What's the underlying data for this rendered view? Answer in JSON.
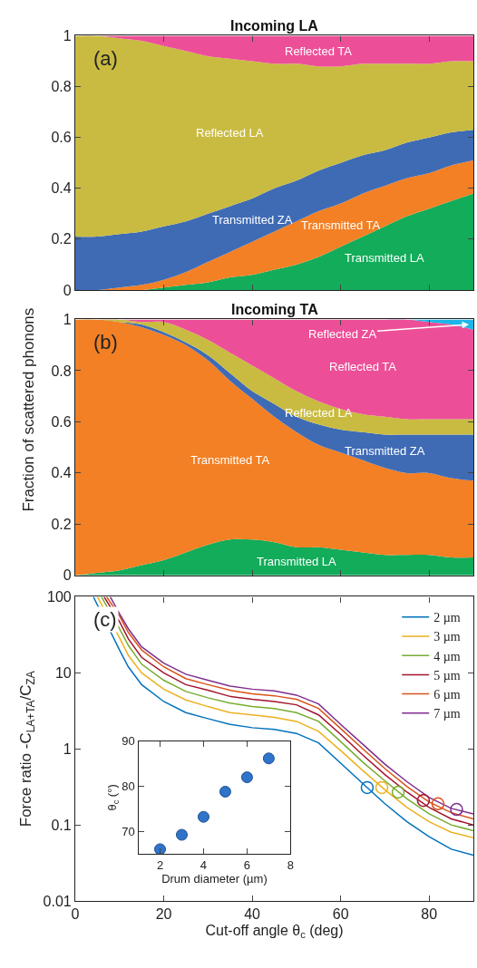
{
  "chart_data": [
    {
      "type": "area",
      "title": "Incoming LA",
      "ylabel": "Fraction of scattered phonons",
      "annotations": [
        "(a)"
      ],
      "stacked": true,
      "x": [
        0,
        5,
        10,
        15,
        20,
        25,
        30,
        35,
        40,
        45,
        50,
        55,
        60,
        65,
        70,
        75,
        80,
        85,
        90
      ],
      "xlim": [
        0,
        90
      ],
      "xticks": [
        0,
        20,
        40,
        60,
        80
      ],
      "ylim": [
        0,
        1
      ],
      "yticks": [
        0,
        0.2,
        0.4,
        0.6,
        0.8,
        1
      ],
      "tick_labels": "y",
      "series": [
        {
          "name": "Transmitted LA",
          "color": "#12ac5a",
          "values": [
            0,
            0,
            0,
            0,
            0.01,
            0.02,
            0.03,
            0.05,
            0.06,
            0.08,
            0.1,
            0.13,
            0.17,
            0.21,
            0.25,
            0.29,
            0.32,
            0.35,
            0.38
          ]
        },
        {
          "name": "Transmitted TA",
          "color": "#f38025",
          "values": [
            0,
            0,
            0.01,
            0.02,
            0.03,
            0.05,
            0.08,
            0.1,
            0.13,
            0.15,
            0.17,
            0.18,
            0.17,
            0.17,
            0.16,
            0.15,
            0.14,
            0.14,
            0.13
          ]
        },
        {
          "name": "Transmitted ZA",
          "color": "#3f6bb5",
          "values": [
            0.21,
            0.21,
            0.21,
            0.21,
            0.21,
            0.2,
            0.19,
            0.18,
            0.17,
            0.17,
            0.16,
            0.16,
            0.16,
            0.15,
            0.14,
            0.14,
            0.14,
            0.13,
            0.12
          ]
        },
        {
          "name": "Reflected LA",
          "color": "#c9bb41",
          "values": [
            0.79,
            0.79,
            0.77,
            0.75,
            0.71,
            0.67,
            0.62,
            0.58,
            0.54,
            0.49,
            0.46,
            0.41,
            0.38,
            0.36,
            0.34,
            0.31,
            0.29,
            0.28,
            0.27
          ]
        },
        {
          "name": "Reflected TA",
          "color": "#ec4f97",
          "values": [
            0,
            0,
            0.01,
            0.02,
            0.04,
            0.06,
            0.08,
            0.09,
            0.1,
            0.11,
            0.11,
            0.12,
            0.12,
            0.11,
            0.11,
            0.11,
            0.11,
            0.1,
            0.1
          ]
        }
      ]
    },
    {
      "type": "area",
      "title": "Incoming TA",
      "annotations": [
        "(b)"
      ],
      "stacked": true,
      "x": [
        0,
        5,
        10,
        15,
        20,
        25,
        30,
        35,
        40,
        45,
        50,
        55,
        60,
        65,
        70,
        75,
        80,
        85,
        90
      ],
      "xlim": [
        0,
        90
      ],
      "xticks": [
        0,
        20,
        40,
        60,
        80
      ],
      "ylim": [
        0,
        1
      ],
      "yticks": [
        0,
        0.2,
        0.4,
        0.6,
        0.8,
        1
      ],
      "tick_labels": "y",
      "series": [
        {
          "name": "Transmitted LA",
          "color": "#12ac5a",
          "values": [
            0,
            0.01,
            0.02,
            0.04,
            0.06,
            0.09,
            0.12,
            0.14,
            0.14,
            0.13,
            0.11,
            0.11,
            0.1,
            0.09,
            0.08,
            0.08,
            0.08,
            0.07,
            0.07
          ]
        },
        {
          "name": "Transmitted TA",
          "color": "#f38025",
          "values": [
            1,
            0.99,
            0.97,
            0.93,
            0.88,
            0.81,
            0.72,
            0.62,
            0.55,
            0.49,
            0.45,
            0.4,
            0.38,
            0.36,
            0.34,
            0.32,
            0.32,
            0.31,
            0.3
          ]
        },
        {
          "name": "Transmitted ZA",
          "color": "#3f6bb5",
          "values": [
            0,
            0,
            0,
            0.01,
            0.01,
            0.01,
            0.02,
            0.03,
            0.03,
            0.05,
            0.06,
            0.08,
            0.09,
            0.11,
            0.13,
            0.15,
            0.15,
            0.17,
            0.18
          ]
        },
        {
          "name": "Reflected LA",
          "color": "#c9bb41",
          "values": [
            0,
            0,
            0.01,
            0.01,
            0.04,
            0.05,
            0.06,
            0.08,
            0.1,
            0.1,
            0.1,
            0.09,
            0.08,
            0.07,
            0.07,
            0.06,
            0.06,
            0.06,
            0.06
          ]
        },
        {
          "name": "Reflected TA",
          "color": "#ec4f97",
          "values": [
            0,
            0,
            0,
            0.01,
            0.01,
            0.04,
            0.08,
            0.13,
            0.18,
            0.23,
            0.28,
            0.32,
            0.35,
            0.37,
            0.38,
            0.39,
            0.38,
            0.37,
            0.35
          ]
        },
        {
          "name": "Reflected ZA",
          "color": "#1cb6e8",
          "values": [
            0,
            0,
            0,
            0,
            0,
            0,
            0,
            0,
            0,
            0,
            0,
            0,
            0,
            0,
            0,
            0,
            0.01,
            0.02,
            0.04
          ]
        }
      ]
    },
    {
      "type": "line",
      "xlabel": "Cut-off angle θ$_{c}$ (deg)",
      "ylabel": "Force ratio -C$_{LA+TA}$/C$_{ZA}$",
      "annotations": [
        "(c)"
      ],
      "log": "y",
      "xlim": [
        0,
        90
      ],
      "xticks": [
        0,
        20,
        40,
        60,
        80
      ],
      "ylim": [
        0.01,
        100
      ],
      "yticks": [
        0.01,
        0.1,
        1,
        10,
        100
      ],
      "legend": "top right",
      "line_style": "solid",
      "series": [
        {
          "name": "2 µm",
          "color": "#0072bd",
          "marker": "none",
          "x": [
            4.1,
            10,
            12,
            15,
            20,
            25,
            30,
            35,
            40,
            45,
            50,
            55,
            60,
            65,
            70,
            75,
            80,
            85,
            90
          ],
          "values": [
            100,
            20,
            12,
            7,
            4.2,
            3.0,
            2.5,
            2.1,
            1.9,
            1.8,
            1.6,
            1.2,
            0.65,
            0.35,
            0.19,
            0.11,
            0.07,
            0.048,
            0.04
          ]
        },
        {
          "name": "3 µm",
          "color": "#edb120",
          "marker": "none",
          "x": [
            5.0,
            10,
            12,
            15,
            20,
            25,
            30,
            35,
            40,
            45,
            50,
            55,
            60,
            65,
            70,
            75,
            80,
            85,
            90
          ],
          "values": [
            100,
            29,
            17,
            10,
            6.1,
            4.4,
            3.6,
            3.0,
            2.8,
            2.6,
            2.3,
            1.7,
            0.95,
            0.52,
            0.29,
            0.17,
            0.11,
            0.08,
            0.068
          ]
        },
        {
          "name": "4 µm",
          "color": "#77ac30",
          "marker": "none",
          "x": [
            5.9,
            10,
            12,
            15,
            20,
            25,
            30,
            35,
            40,
            45,
            50,
            55,
            60,
            65,
            70,
            75,
            80,
            85,
            90
          ],
          "values": [
            100,
            38,
            23,
            13,
            8,
            5.7,
            4.7,
            4.0,
            3.6,
            3.4,
            3.0,
            2.3,
            1.25,
            0.67,
            0.38,
            0.22,
            0.14,
            0.1,
            0.084
          ]
        },
        {
          "name": "5 µm",
          "color": "#a2142f",
          "marker": "none",
          "x": [
            6.5,
            10,
            12,
            15,
            20,
            25,
            30,
            35,
            40,
            45,
            50,
            55,
            60,
            65,
            70,
            75,
            80,
            85,
            90
          ],
          "values": [
            100,
            47,
            28,
            16,
            10,
            7,
            5.9,
            4.9,
            4.5,
            4.2,
            3.8,
            2.8,
            1.55,
            0.83,
            0.46,
            0.27,
            0.17,
            0.12,
            0.1
          ]
        },
        {
          "name": "6 µm",
          "color": "#d95319",
          "marker": "none",
          "x": [
            7.1,
            10,
            12,
            15,
            20,
            25,
            30,
            35,
            40,
            45,
            50,
            55,
            60,
            65,
            70,
            75,
            80,
            85,
            90
          ],
          "values": [
            100,
            56,
            34,
            20,
            12,
            8.4,
            7,
            5.9,
            5.3,
            5.0,
            4.5,
            3.4,
            1.85,
            1.0,
            0.55,
            0.32,
            0.2,
            0.145,
            0.12
          ]
        },
        {
          "name": "7 µm",
          "color": "#7e2f8e",
          "marker": "none",
          "x": [
            7.9,
            10,
            12,
            15,
            20,
            25,
            30,
            35,
            40,
            45,
            50,
            55,
            60,
            65,
            70,
            75,
            80,
            85,
            90
          ],
          "values": [
            100,
            60,
            38,
            22,
            13.4,
            9.6,
            8,
            6.7,
            6.1,
            5.8,
            5.1,
            3.9,
            2.1,
            1.15,
            0.63,
            0.37,
            0.23,
            0.165,
            0.14
          ]
        },
        {
          "type": "scatter",
          "marker": "circle",
          "x": [
            66,
            69.3,
            73,
            78.7,
            82,
            86.2
          ],
          "values": [
            0.31,
            0.31,
            0.27,
            0.21,
            0.19,
            0.16
          ],
          "colors": [
            "#0072bd",
            "#edb120",
            "#77ac30",
            "#a2142f",
            "#d95319",
            "#7e2f8e"
          ]
        }
      ]
    },
    {
      "type": "scatter",
      "xlabel": "Drum diameter (µm)",
      "ylabel": "θ$_{c}$ (°)",
      "x": [
        2,
        3,
        4,
        5,
        6,
        7
      ],
      "values": [
        66,
        69.2,
        73.2,
        78.8,
        82,
        86.2
      ],
      "color": "#2f74c8",
      "marker": "circle",
      "xlim": [
        1,
        8
      ],
      "xticks": [
        2,
        4,
        6,
        8
      ],
      "ylim": [
        65,
        90
      ],
      "yticks": [
        70,
        80,
        90
      ]
    }
  ]
}
